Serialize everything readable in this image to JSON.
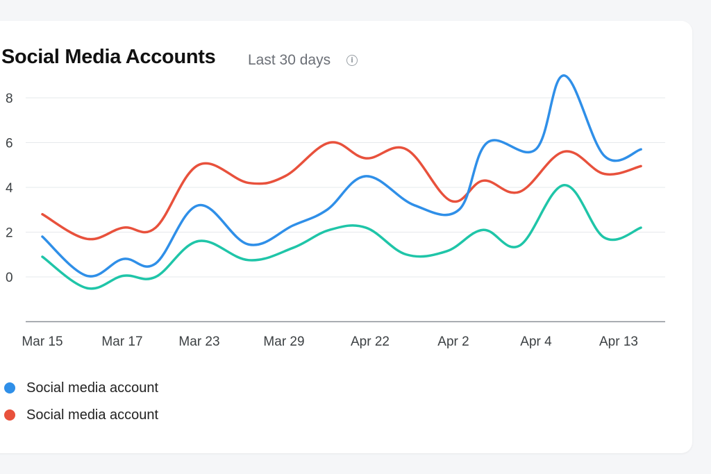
{
  "card": {
    "title": "Social Media Accounts",
    "subtitle": "Last 30 days",
    "info_icon": "info-icon"
  },
  "legend": [
    {
      "label": "Social media account",
      "color": "#2f8fe8"
    },
    {
      "label": "Social media account",
      "color": "#e8513c"
    }
  ],
  "chart_data": {
    "type": "line",
    "title": "Social Media Accounts",
    "subtitle": "Last 30 days",
    "xlabel": "",
    "ylabel": "",
    "x_tick_labels": [
      "Mar 15",
      "Mar 17",
      "Mar 23",
      "Mar 29",
      "Apr 22",
      "Apr 2",
      "Apr 4",
      "Apr 13"
    ],
    "y_ticks": [
      0,
      2,
      4,
      6,
      8
    ],
    "ylim": [
      -2,
      8
    ],
    "grid": true,
    "legend_position": "bottom-left",
    "series": [
      {
        "name": "Social media account",
        "color": "#2f8fe8",
        "points": [
          [
            0,
            1.8
          ],
          [
            0.55,
            0.05
          ],
          [
            1.0,
            0.8
          ],
          [
            1.4,
            0.6
          ],
          [
            1.93,
            3.2
          ],
          [
            2.55,
            1.45
          ],
          [
            3.1,
            2.3
          ],
          [
            3.52,
            3.0
          ],
          [
            4.0,
            4.5
          ],
          [
            4.6,
            3.2
          ],
          [
            5.15,
            3.0
          ],
          [
            5.5,
            6.0
          ],
          [
            6.1,
            5.7
          ],
          [
            6.45,
            9.0
          ],
          [
            6.95,
            5.4
          ],
          [
            7.4,
            5.7
          ]
        ]
      },
      {
        "name": "Social media account",
        "color": "#e8513c",
        "points": [
          [
            0,
            2.8
          ],
          [
            0.55,
            1.7
          ],
          [
            1.0,
            2.2
          ],
          [
            1.4,
            2.2
          ],
          [
            1.93,
            5.0
          ],
          [
            2.55,
            4.2
          ],
          [
            3.0,
            4.5
          ],
          [
            3.55,
            6.0
          ],
          [
            4.0,
            5.3
          ],
          [
            4.5,
            5.7
          ],
          [
            5.05,
            3.4
          ],
          [
            5.45,
            4.3
          ],
          [
            5.9,
            3.8
          ],
          [
            6.45,
            5.6
          ],
          [
            6.95,
            4.6
          ],
          [
            7.4,
            4.95
          ]
        ]
      },
      {
        "color": "#1fc5a8",
        "points": [
          [
            0,
            0.9
          ],
          [
            0.55,
            -0.5
          ],
          [
            1.0,
            0.05
          ],
          [
            1.4,
            0.0
          ],
          [
            1.93,
            1.6
          ],
          [
            2.55,
            0.75
          ],
          [
            3.1,
            1.3
          ],
          [
            3.55,
            2.1
          ],
          [
            4.0,
            2.2
          ],
          [
            4.5,
            1.0
          ],
          [
            5.0,
            1.15
          ],
          [
            5.45,
            2.1
          ],
          [
            5.9,
            1.4
          ],
          [
            6.45,
            4.1
          ],
          [
            6.95,
            1.75
          ],
          [
            7.4,
            2.2
          ]
        ]
      }
    ]
  }
}
